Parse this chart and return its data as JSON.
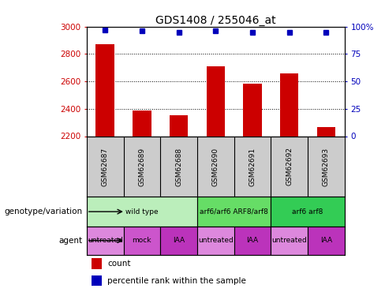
{
  "title": "GDS1408 / 255046_at",
  "samples": [
    "GSM62687",
    "GSM62689",
    "GSM62688",
    "GSM62690",
    "GSM62691",
    "GSM62692",
    "GSM62693"
  ],
  "counts": [
    2870,
    2390,
    2355,
    2710,
    2585,
    2660,
    2265
  ],
  "percentiles": [
    97,
    96,
    95,
    96,
    95,
    95,
    95
  ],
  "ylim_left": [
    2200,
    3000
  ],
  "ylim_right": [
    0,
    100
  ],
  "yticks_left": [
    2200,
    2400,
    2600,
    2800,
    3000
  ],
  "yticks_right": [
    0,
    25,
    50,
    75,
    100
  ],
  "bar_color": "#cc0000",
  "dot_color": "#0000bb",
  "bar_width": 0.5,
  "genotype_groups": [
    {
      "label": "wild type",
      "span": [
        0,
        3
      ],
      "color": "#bbeebb"
    },
    {
      "label": "arf6/arf6 ARF8/arf8",
      "span": [
        3,
        5
      ],
      "color": "#66dd66"
    },
    {
      "label": "arf6 arf8",
      "span": [
        5,
        7
      ],
      "color": "#33cc55"
    }
  ],
  "agent_groups": [
    {
      "label": "untreated",
      "span": [
        0,
        1
      ],
      "color": "#dd88dd"
    },
    {
      "label": "mock",
      "span": [
        1,
        2
      ],
      "color": "#cc55cc"
    },
    {
      "label": "IAA",
      "span": [
        2,
        3
      ],
      "color": "#bb33bb"
    },
    {
      "label": "untreated",
      "span": [
        3,
        4
      ],
      "color": "#dd88dd"
    },
    {
      "label": "IAA",
      "span": [
        4,
        5
      ],
      "color": "#bb33bb"
    },
    {
      "label": "untreated",
      "span": [
        5,
        6
      ],
      "color": "#dd88dd"
    },
    {
      "label": "IAA",
      "span": [
        6,
        7
      ],
      "color": "#bb33bb"
    }
  ],
  "genotype_label": "genotype/variation",
  "agent_label": "agent",
  "legend_count_label": "count",
  "legend_pct_label": "percentile rank within the sample",
  "dotted_grid_values": [
    2400,
    2600,
    2800
  ],
  "background_color": "#ffffff",
  "label_color_left": "#cc0000",
  "label_color_right": "#0000bb",
  "sample_bg_color": "#cccccc",
  "fig_width": 4.88,
  "fig_height": 3.75,
  "dpi": 100
}
